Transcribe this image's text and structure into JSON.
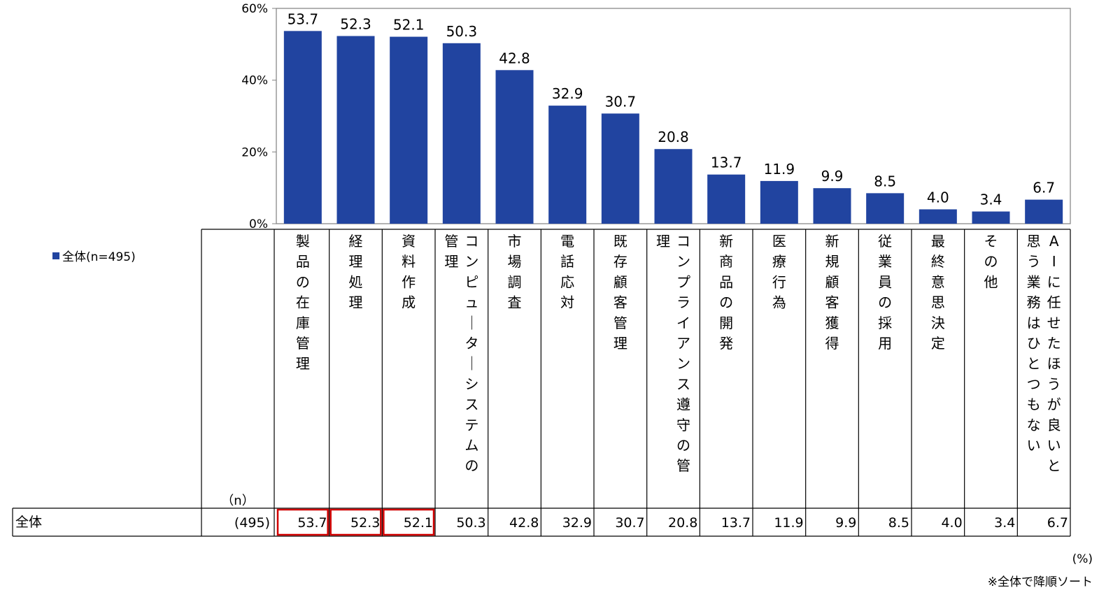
{
  "legend": {
    "label": "全体(n=495)",
    "color": "#2144A0"
  },
  "table": {
    "n_header": "（n）",
    "row_label": "全体",
    "row_n": "(495)"
  },
  "unit_label": "(%)",
  "note": "※全体で降順ソート",
  "highlight_color": "#D00000",
  "chart_data": {
    "type": "bar",
    "ylim": [
      0,
      60
    ],
    "yticks": [
      "0%",
      "20%",
      "40%",
      "60%"
    ],
    "categories": [
      "製品の在庫管理",
      "経理処理",
      "資料作成",
      "コンピューターシステムの管理",
      "市場調査",
      "電話応対",
      "既存顧客管理",
      "コンプライアンス遵守の管理",
      "新商品の開発",
      "医療行為",
      "新規顧客獲得",
      "従業員の採用",
      "最終意思決定",
      "その他",
      "AIに任せたほうが良いと思う業務はひとつもない"
    ],
    "series": [
      {
        "name": "全体(n=495)",
        "values": [
          53.7,
          52.3,
          52.1,
          50.3,
          42.8,
          32.9,
          30.7,
          20.8,
          13.7,
          11.9,
          9.9,
          8.5,
          4.0,
          3.4,
          6.7
        ]
      }
    ],
    "highlighted": [
      0,
      1,
      2
    ]
  }
}
